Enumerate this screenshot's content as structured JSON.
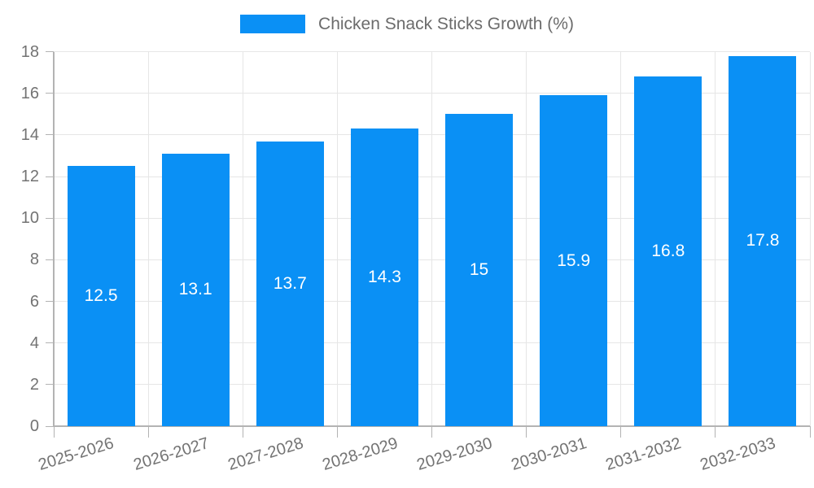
{
  "chart_data": {
    "type": "bar",
    "title": "Chicken Snack Sticks Growth (%)",
    "categories": [
      "2025-2026",
      "2026-2027",
      "2027-2028",
      "2028-2029",
      "2029-2030",
      "2030-2031",
      "2031-2032",
      "2032-2033"
    ],
    "values": [
      12.5,
      13.1,
      13.7,
      14.3,
      15,
      15.9,
      16.8,
      17.8
    ],
    "xlabel": "",
    "ylabel": "",
    "ylim": [
      0,
      18
    ],
    "y_ticks": [
      0,
      2,
      4,
      6,
      8,
      10,
      12,
      14,
      16,
      18
    ],
    "grid": true,
    "legend_position": "top",
    "legend_entries": [
      "Chicken Snack Sticks Growth (%)"
    ],
    "colors": {
      "bar": "#0a90f5",
      "grid": "#e6e6e6",
      "axis": "#b3b3b3",
      "tick_label": "#737373",
      "legend_label": "#6b6b6b",
      "value_label": "#ffffff",
      "background": "#ffffff"
    }
  }
}
